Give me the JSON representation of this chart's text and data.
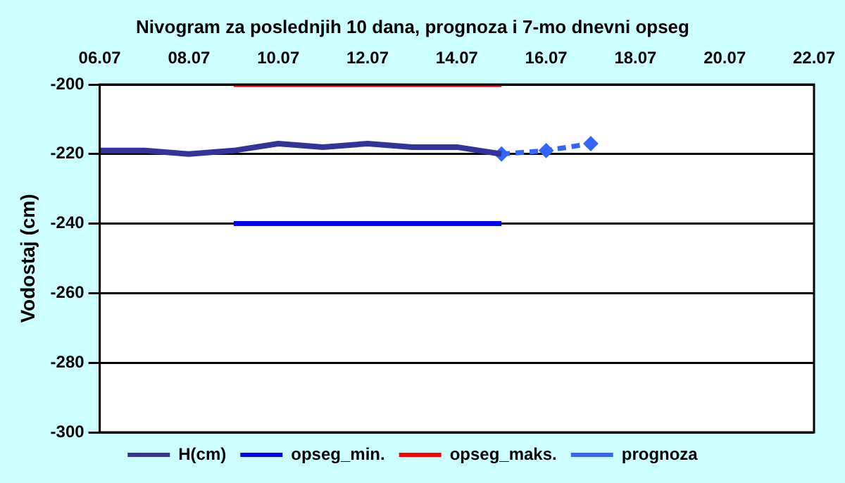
{
  "chart_data": {
    "type": "line",
    "title": "Nivogram za poslednjih 10 dana, prognoza i 7-mo dnevni opseg",
    "ylabel": "Vodostaj (cm)",
    "xlim": [
      "--07-06",
      "--07-22"
    ],
    "xticks": [
      {
        "value": "--07-06",
        "label": "06.07"
      },
      {
        "value": "--07-08",
        "label": "08.07"
      },
      {
        "value": "--07-10",
        "label": "10.07"
      },
      {
        "value": "--07-12",
        "label": "12.07"
      },
      {
        "value": "--07-14",
        "label": "14.07"
      },
      {
        "value": "--07-16",
        "label": "16.07"
      },
      {
        "value": "--07-18",
        "label": "18.07"
      },
      {
        "value": "--07-20",
        "label": "20.07"
      },
      {
        "value": "--07-22",
        "label": "22.07"
      }
    ],
    "ylim": [
      -300,
      -200
    ],
    "yticks": [
      -300,
      -280,
      -260,
      -240,
      -220,
      -200
    ],
    "grid": "y",
    "legend": "bottom",
    "series": [
      {
        "name": "H(cm)",
        "color": "#333399",
        "x": [
          "--07-06",
          "--07-07",
          "--07-08",
          "--07-09",
          "--07-10",
          "--07-11",
          "--07-12",
          "--07-13",
          "--07-14",
          "--07-15"
        ],
        "values": [
          -219,
          -219,
          -220,
          -219,
          -217,
          -218,
          -217,
          -218,
          -218,
          -220
        ]
      },
      {
        "name": "opseg_min.",
        "color": "#0000ff",
        "x": [
          "--07-09",
          "--07-15"
        ],
        "values": [
          -240,
          -240
        ]
      },
      {
        "name": "opseg_maks.",
        "color": "#ff0000",
        "x": [
          "--07-09",
          "--07-15"
        ],
        "values": [
          -200,
          -200
        ]
      },
      {
        "name": "prognoza",
        "color": "#3366ff",
        "marker": "diamond",
        "line_style": "dashed",
        "x": [
          "--07-15",
          "--07-16",
          "--07-17"
        ],
        "values": [
          -220,
          -219,
          -217
        ]
      }
    ]
  }
}
